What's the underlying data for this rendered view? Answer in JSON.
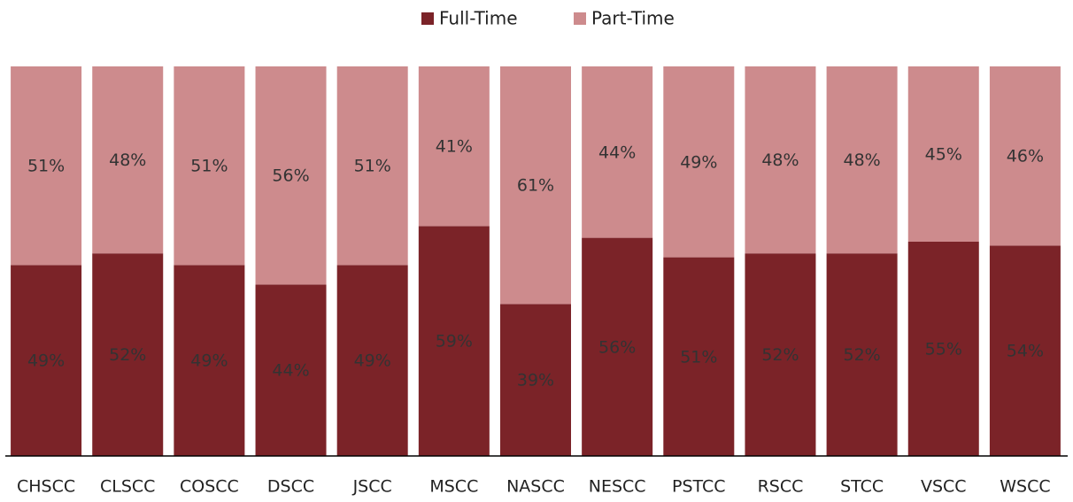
{
  "chart_data": {
    "type": "stacked_bar",
    "categories": [
      "CHSCC",
      "CLSCC",
      "COSCC",
      "DSCC",
      "JSCC",
      "MSCC",
      "NASCC",
      "NESCC",
      "PSTCC",
      "RSCC",
      "STCC",
      "VSCC",
      "WSCC"
    ],
    "series": [
      {
        "name": "Full-Time",
        "color": "#7b2328",
        "values": [
          49,
          52,
          49,
          44,
          49,
          59,
          39,
          56,
          51,
          52,
          52,
          55,
          54
        ],
        "value_labels": [
          "49%",
          "52%",
          "49%",
          "44%",
          "49%",
          "59%",
          "39%",
          "56%",
          "51%",
          "52%",
          "52%",
          "55%",
          "54%"
        ]
      },
      {
        "name": "Part-Time",
        "color": "#cd8b8d",
        "values": [
          51,
          48,
          51,
          56,
          51,
          41,
          61,
          44,
          49,
          48,
          48,
          45,
          46
        ],
        "value_labels": [
          "51%",
          "48%",
          "51%",
          "56%",
          "51%",
          "41%",
          "61%",
          "44%",
          "49%",
          "48%",
          "48%",
          "45%",
          "46%"
        ]
      }
    ],
    "ylim": [
      0,
      100
    ],
    "legend": "top"
  }
}
